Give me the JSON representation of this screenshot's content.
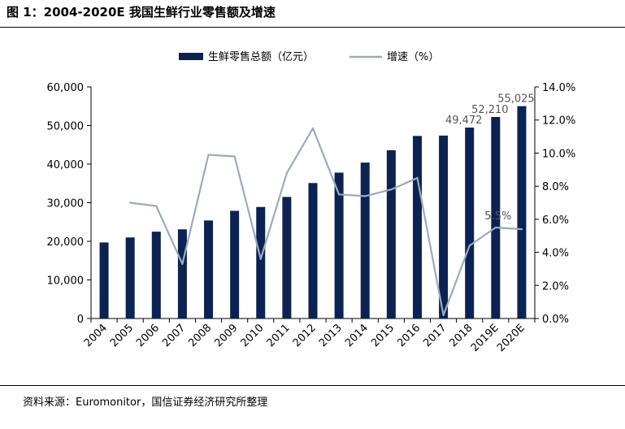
{
  "figure": {
    "title": "图 1：2004-2020E 我国生鲜行业零售额及增速",
    "source": "资料来源：Euromonitor，国信证券经济研究所整理"
  },
  "chart_data": {
    "type": "bar",
    "categories": [
      "2004",
      "2005",
      "2006",
      "2007",
      "2008",
      "2009",
      "2010",
      "2011",
      "2012",
      "2013",
      "2014",
      "2015",
      "2016",
      "2017",
      "2018",
      "2019E",
      "2020E"
    ],
    "series": [
      {
        "name": "生鲜零售总额（亿元）",
        "type": "bar",
        "axis": "left",
        "color": "#0b2253",
        "values": [
          19700,
          21000,
          22500,
          23100,
          25400,
          27900,
          28900,
          31500,
          35100,
          37800,
          40400,
          43600,
          47300,
          47400,
          49472,
          52210,
          55025
        ]
      },
      {
        "name": "增速（%）",
        "type": "line",
        "axis": "right",
        "color": "#9aabbe",
        "values": [
          null,
          7.0,
          6.8,
          3.3,
          9.9,
          9.8,
          3.6,
          8.8,
          11.5,
          7.5,
          7.4,
          7.8,
          8.5,
          0.2,
          4.4,
          5.5,
          5.4
        ]
      }
    ],
    "left_axis": {
      "min": 0,
      "max": 60000,
      "ticks": [
        "0",
        "10,000",
        "20,000",
        "30,000",
        "40,000",
        "50,000",
        "60,000"
      ],
      "tick_values": [
        0,
        10000,
        20000,
        30000,
        40000,
        50000,
        60000
      ]
    },
    "right_axis": {
      "min": 0,
      "max": 14,
      "ticks": [
        "0.0%",
        "2.0%",
        "4.0%",
        "6.0%",
        "8.0%",
        "10.0%",
        "12.0%",
        "14.0%"
      ],
      "tick_values": [
        0,
        2,
        4,
        6,
        8,
        10,
        12,
        14
      ]
    },
    "bar_labels": [
      {
        "index": 14,
        "text": "49,472"
      },
      {
        "index": 15,
        "text": "52,210"
      },
      {
        "index": 16,
        "text": "55,025"
      }
    ],
    "line_labels": [
      {
        "index": 15,
        "text": "5.5%"
      }
    ],
    "legend": {
      "placement": "top-center"
    },
    "grid": false
  }
}
